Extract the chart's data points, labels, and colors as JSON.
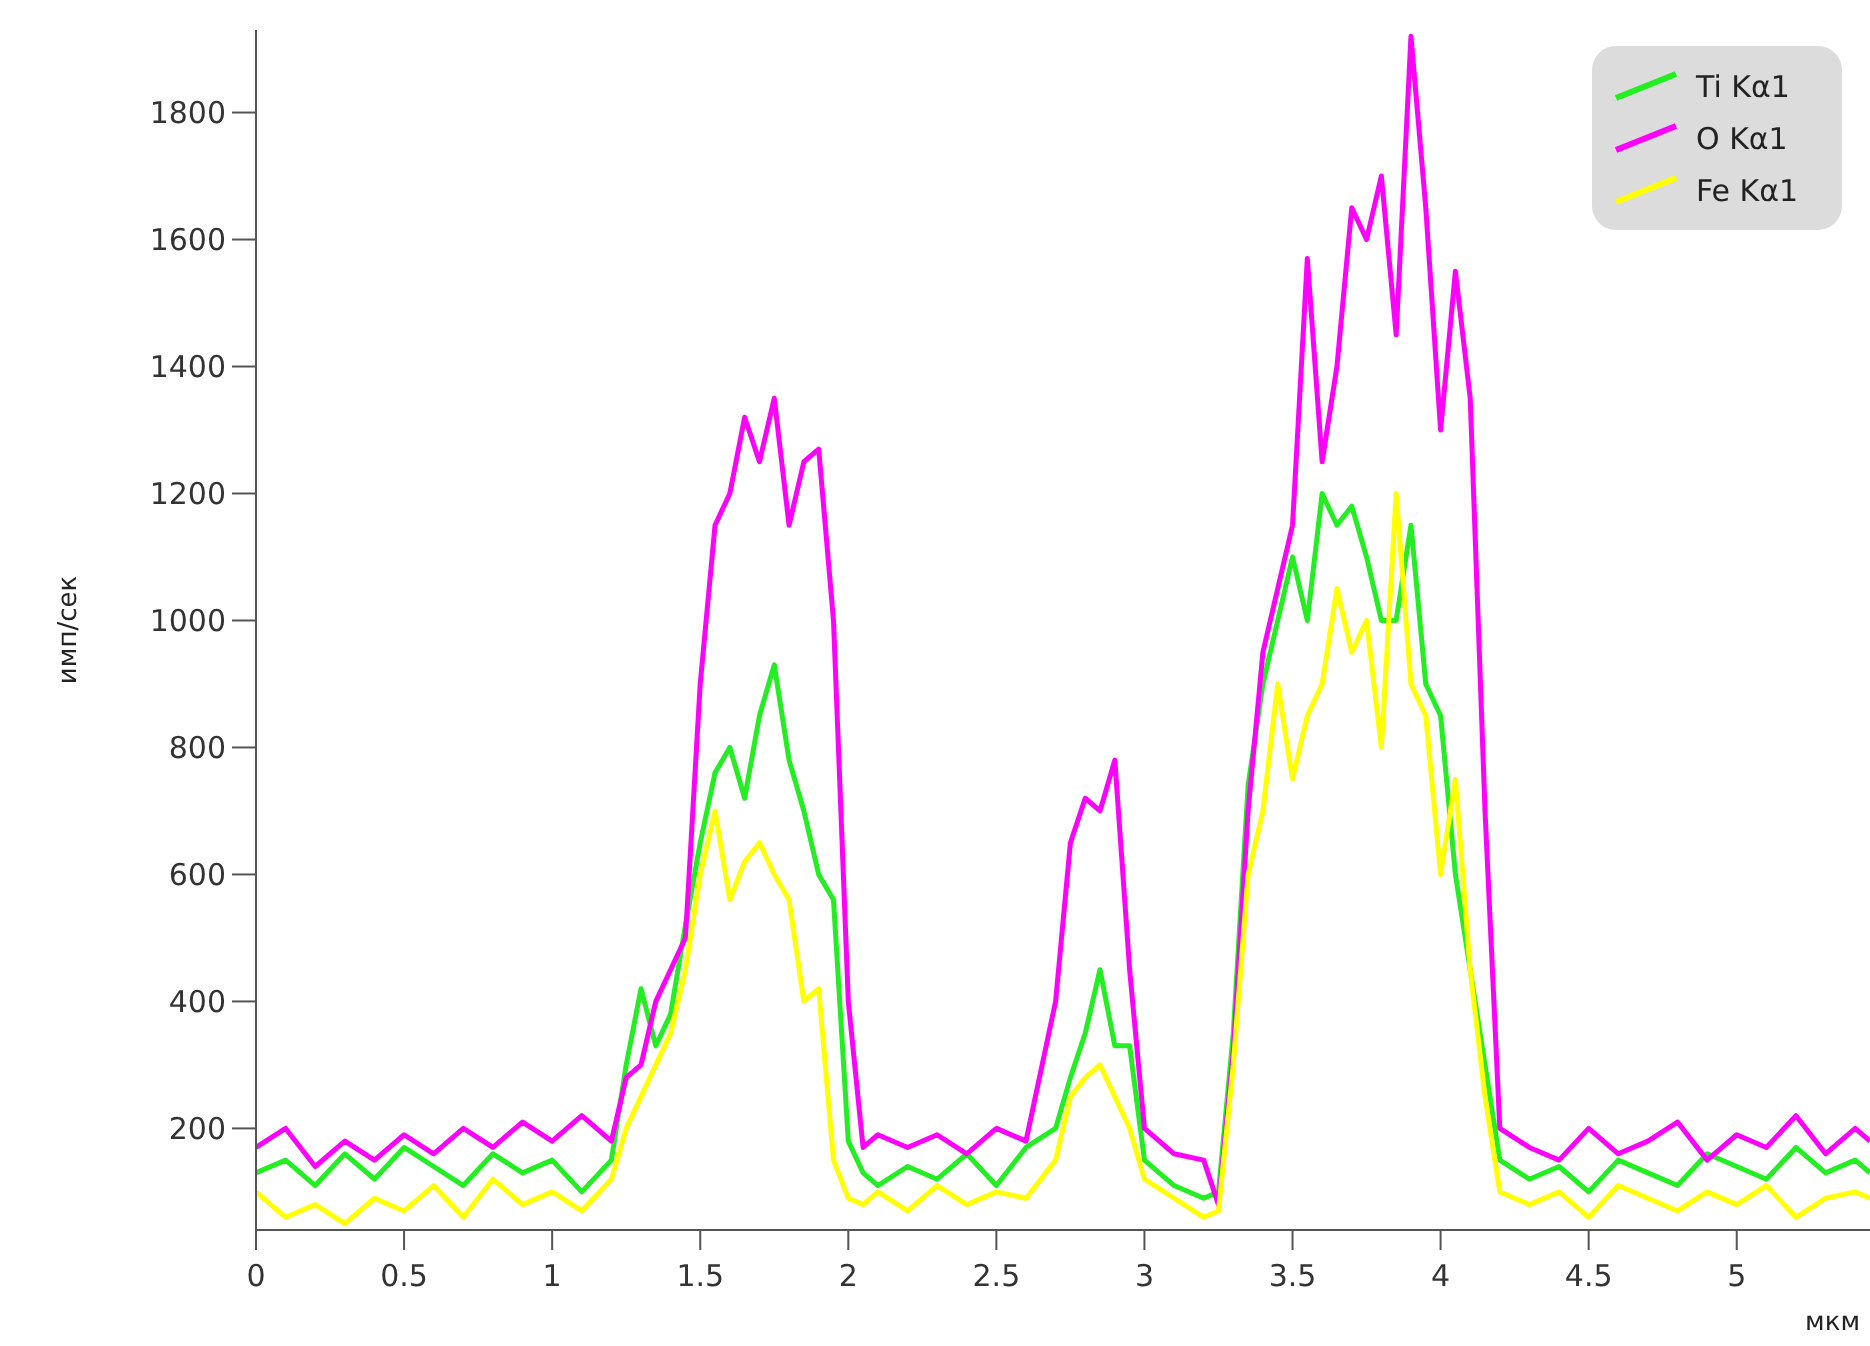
{
  "chart_data": {
    "type": "line",
    "xlabel": "мкм",
    "ylabel": "имп/сек",
    "x": [
      0,
      0.1,
      0.2,
      0.3,
      0.4,
      0.5,
      0.6,
      0.7,
      0.8,
      0.9,
      1.0,
      1.1,
      1.2,
      1.25,
      1.3,
      1.35,
      1.4,
      1.45,
      1.5,
      1.55,
      1.6,
      1.65,
      1.7,
      1.75,
      1.8,
      1.85,
      1.9,
      1.95,
      2.0,
      2.05,
      2.1,
      2.2,
      2.3,
      2.4,
      2.5,
      2.6,
      2.7,
      2.75,
      2.8,
      2.85,
      2.9,
      2.95,
      3.0,
      3.1,
      3.2,
      3.25,
      3.3,
      3.35,
      3.4,
      3.45,
      3.5,
      3.55,
      3.6,
      3.65,
      3.7,
      3.75,
      3.8,
      3.85,
      3.9,
      3.95,
      4.0,
      4.05,
      4.1,
      4.15,
      4.2,
      4.3,
      4.4,
      4.5,
      4.6,
      4.7,
      4.8,
      4.9,
      5.0,
      5.1,
      5.2,
      5.3,
      5.4,
      5.45
    ],
    "series": [
      {
        "name": "Ti Kα1",
        "color": "#22ee22",
        "values": [
          130,
          150,
          110,
          160,
          120,
          170,
          140,
          110,
          160,
          130,
          150,
          100,
          150,
          300,
          420,
          330,
          380,
          520,
          650,
          760,
          800,
          720,
          850,
          930,
          780,
          700,
          600,
          560,
          180,
          130,
          110,
          140,
          120,
          160,
          110,
          170,
          200,
          280,
          350,
          450,
          330,
          330,
          150,
          110,
          90,
          100,
          350,
          740,
          900,
          1000,
          1100,
          1000,
          1200,
          1150,
          1180,
          1100,
          1000,
          1000,
          1150,
          900,
          850,
          600,
          450,
          300,
          150,
          120,
          140,
          100,
          150,
          130,
          110,
          160,
          140,
          120,
          170,
          130,
          150,
          130
        ]
      },
      {
        "name": "O Kα1",
        "color": "#ff00ff",
        "values": [
          170,
          200,
          140,
          180,
          150,
          190,
          160,
          200,
          170,
          210,
          180,
          220,
          180,
          280,
          300,
          400,
          450,
          500,
          900,
          1150,
          1200,
          1320,
          1250,
          1350,
          1150,
          1250,
          1270,
          1000,
          400,
          170,
          190,
          170,
          190,
          160,
          200,
          180,
          400,
          650,
          720,
          700,
          780,
          450,
          200,
          160,
          150,
          80,
          320,
          700,
          950,
          1050,
          1150,
          1570,
          1250,
          1400,
          1650,
          1600,
          1700,
          1450,
          1920,
          1650,
          1300,
          1550,
          1350,
          700,
          200,
          170,
          150,
          200,
          160,
          180,
          210,
          150,
          190,
          170,
          220,
          160,
          200,
          180
        ]
      },
      {
        "name": "Fe Kα1",
        "color": "#ffff00",
        "values": [
          100,
          60,
          80,
          50,
          90,
          70,
          110,
          60,
          120,
          80,
          100,
          70,
          120,
          200,
          250,
          300,
          350,
          450,
          600,
          700,
          560,
          620,
          650,
          600,
          560,
          400,
          420,
          150,
          90,
          80,
          100,
          70,
          110,
          80,
          100,
          90,
          150,
          250,
          280,
          300,
          250,
          200,
          120,
          90,
          60,
          70,
          300,
          600,
          700,
          900,
          750,
          850,
          900,
          1050,
          950,
          1000,
          800,
          1200,
          900,
          850,
          600,
          750,
          450,
          250,
          100,
          80,
          100,
          60,
          110,
          90,
          70,
          100,
          80,
          110,
          60,
          90,
          100,
          90
        ]
      }
    ],
    "xlim": [
      0,
      5.45
    ],
    "xticks": [
      0,
      0.5,
      1,
      1.5,
      2,
      2.5,
      3,
      3.5,
      4,
      4.5,
      5
    ],
    "ylim": [
      40,
      1930
    ],
    "yticks": [
      200,
      400,
      600,
      800,
      1000,
      1200,
      1400,
      1600,
      1800
    ],
    "grid": false,
    "legend": "top right",
    "line_style": "solid"
  }
}
